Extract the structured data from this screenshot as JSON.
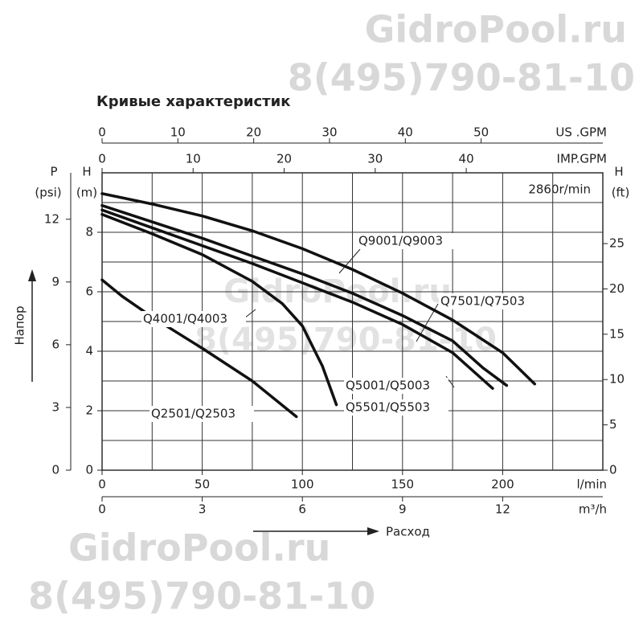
{
  "chart_data": {
    "type": "line",
    "title": "Кривые характеристик",
    "subtitle": "2860r/min",
    "watermark": {
      "site": "GidroPool.ru",
      "phone": "8(495)790-81-10"
    },
    "ylabel": "Напор",
    "xlabel": "Расход",
    "x_unit": "l/min",
    "y_axis_name": "H",
    "y_unit": "(m)",
    "xlim": [
      0,
      250
    ],
    "xticks": [
      0,
      50,
      100,
      150,
      200
    ],
    "xgrid": [
      0,
      25,
      50,
      75,
      100,
      125,
      150,
      175,
      200,
      225,
      250
    ],
    "ylim": [
      0,
      10
    ],
    "yticks": [
      0,
      2,
      4,
      6,
      8
    ],
    "ygrid": [
      0,
      1,
      2,
      3,
      4,
      5,
      6,
      7,
      8,
      9,
      10
    ],
    "x2_unit": "m³/h",
    "x2lim": [
      0,
      15
    ],
    "x2ticks": [
      0,
      3,
      6,
      9,
      12
    ],
    "x3_unit": "US .GPM",
    "x3lim": [
      0,
      66.05
    ],
    "x3ticks": [
      0,
      10,
      20,
      30,
      40,
      50
    ],
    "x4_unit": "IMP.GPM",
    "x4lim": [
      0,
      55
    ],
    "x4ticks": [
      0,
      10,
      20,
      30,
      40
    ],
    "y2_axis_name": "H",
    "y2_unit": "(ft)",
    "y2lim": [
      0,
      32.81
    ],
    "y2ticks": [
      0,
      5,
      10,
      15,
      20,
      25
    ],
    "y3_axis_name": "P",
    "y3_unit": "(psi)",
    "y3lim": [
      0,
      14.22
    ],
    "y3ticks": [
      0,
      3,
      6,
      9,
      12
    ],
    "grid": true,
    "annotations": [
      "Q4001/Q4003"
    ],
    "series": [
      {
        "name": "Q9001/Q9003",
        "color": "#111111",
        "x": [
          0,
          25,
          50,
          75,
          100,
          125,
          150,
          175,
          200,
          216
        ],
        "values": [
          9.3,
          8.95,
          8.55,
          8.05,
          7.45,
          6.75,
          5.95,
          5.05,
          3.95,
          2.9
        ]
      },
      {
        "name": "Q7501/Q7503",
        "color": "#111111",
        "x": [
          0,
          25,
          50,
          75,
          100,
          125,
          150,
          175,
          190,
          202
        ],
        "values": [
          8.9,
          8.35,
          7.8,
          7.2,
          6.6,
          5.95,
          5.2,
          4.35,
          3.45,
          2.85
        ]
      },
      {
        "name": "Q5001/Q5003",
        "color": "#111111",
        "x": [
          0,
          25,
          50,
          75,
          100,
          125,
          150,
          175,
          195
        ],
        "values": [
          8.75,
          8.15,
          7.55,
          6.95,
          6.3,
          5.65,
          4.9,
          3.95,
          2.75
        ]
      },
      {
        "name": "Q5501/Q5503",
        "color": "#111111",
        "x": [
          0,
          25,
          50,
          75,
          90,
          100,
          110,
          117
        ],
        "values": [
          8.6,
          7.95,
          7.25,
          6.35,
          5.6,
          4.85,
          3.5,
          2.2
        ]
      },
      {
        "name": "Q2501/Q2503",
        "color": "#111111",
        "x": [
          0,
          10,
          25,
          50,
          75,
          97
        ],
        "values": [
          6.4,
          5.85,
          5.15,
          4.1,
          3.0,
          1.8
        ]
      }
    ]
  }
}
